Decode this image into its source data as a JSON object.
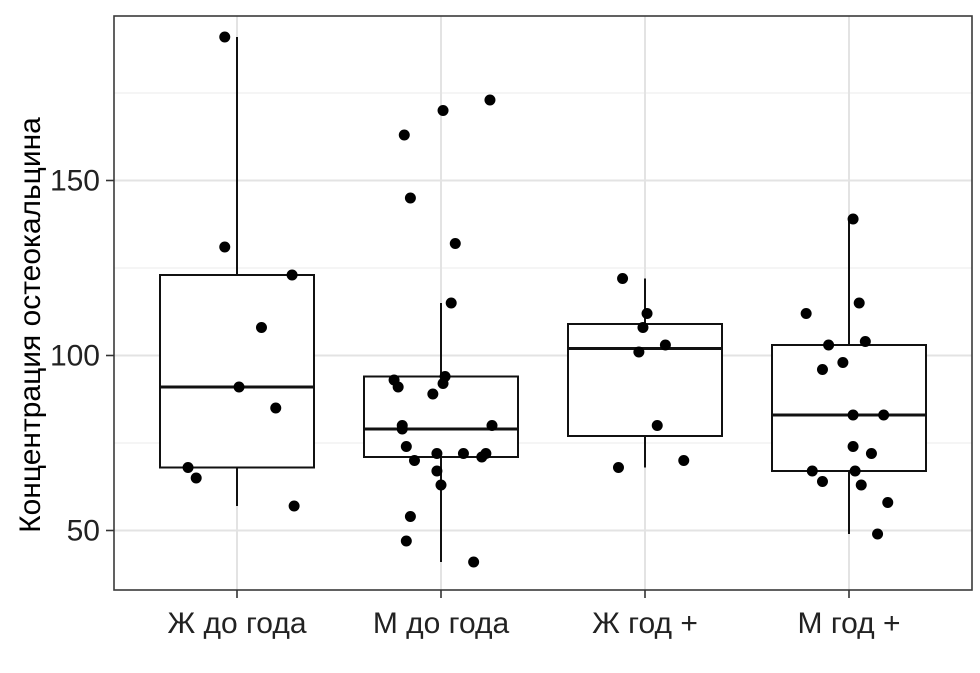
{
  "chart_data": {
    "type": "boxplot",
    "title": "",
    "xlabel": "",
    "ylabel": "Концентрация остеокальцина",
    "ylim": [
      33,
      197
    ],
    "yticks": [
      50,
      100,
      150
    ],
    "grid": true,
    "categories": [
      "Ж до года",
      "М до года",
      "Ж год +",
      "М год +"
    ],
    "boxes": [
      {
        "name": "Ж до года",
        "whisker_low": 57,
        "q1": 68,
        "median": 91,
        "q3": 123,
        "whisker_high": 191
      },
      {
        "name": "М до года",
        "whisker_low": 41,
        "q1": 71,
        "median": 79,
        "q3": 94,
        "whisker_high": 115
      },
      {
        "name": "Ж год +",
        "whisker_low": 68,
        "q1": 77,
        "median": 102,
        "q3": 109,
        "whisker_high": 122
      },
      {
        "name": "М год +",
        "whisker_low": 49,
        "q1": 67,
        "median": 83,
        "q3": 103,
        "whisker_high": 139
      }
    ],
    "points": [
      {
        "x": 0,
        "jitter": -0.06,
        "y": 191
      },
      {
        "x": 0,
        "jitter": -0.06,
        "y": 131
      },
      {
        "x": 0,
        "jitter": 0.27,
        "y": 123
      },
      {
        "x": 0,
        "jitter": 0.12,
        "y": 108
      },
      {
        "x": 0,
        "jitter": 0.01,
        "y": 91
      },
      {
        "x": 0,
        "jitter": 0.19,
        "y": 85
      },
      {
        "x": 0,
        "jitter": -0.24,
        "y": 68
      },
      {
        "x": 0,
        "jitter": -0.2,
        "y": 65
      },
      {
        "x": 0,
        "jitter": 0.28,
        "y": 57
      },
      {
        "x": 1,
        "jitter": 0.24,
        "y": 173
      },
      {
        "x": 1,
        "jitter": 0.01,
        "y": 170
      },
      {
        "x": 1,
        "jitter": -0.18,
        "y": 163
      },
      {
        "x": 1,
        "jitter": -0.15,
        "y": 145
      },
      {
        "x": 1,
        "jitter": 0.07,
        "y": 132
      },
      {
        "x": 1,
        "jitter": 0.05,
        "y": 115
      },
      {
        "x": 1,
        "jitter": 0.02,
        "y": 94
      },
      {
        "x": 1,
        "jitter": -0.23,
        "y": 93
      },
      {
        "x": 1,
        "jitter": 0.01,
        "y": 92
      },
      {
        "x": 1,
        "jitter": -0.21,
        "y": 91
      },
      {
        "x": 1,
        "jitter": -0.04,
        "y": 89
      },
      {
        "x": 1,
        "jitter": 0.25,
        "y": 80
      },
      {
        "x": 1,
        "jitter": -0.19,
        "y": 80
      },
      {
        "x": 1,
        "jitter": -0.19,
        "y": 79
      },
      {
        "x": 1,
        "jitter": -0.17,
        "y": 74
      },
      {
        "x": 1,
        "jitter": -0.02,
        "y": 72
      },
      {
        "x": 1,
        "jitter": 0.11,
        "y": 72
      },
      {
        "x": 1,
        "jitter": 0.22,
        "y": 72
      },
      {
        "x": 1,
        "jitter": 0.2,
        "y": 71
      },
      {
        "x": 1,
        "jitter": -0.13,
        "y": 70
      },
      {
        "x": 1,
        "jitter": -0.02,
        "y": 67
      },
      {
        "x": 1,
        "jitter": 0.0,
        "y": 63
      },
      {
        "x": 1,
        "jitter": -0.15,
        "y": 54
      },
      {
        "x": 1,
        "jitter": -0.17,
        "y": 47
      },
      {
        "x": 1,
        "jitter": 0.16,
        "y": 41
      },
      {
        "x": 2,
        "jitter": -0.11,
        "y": 122
      },
      {
        "x": 2,
        "jitter": 0.01,
        "y": 112
      },
      {
        "x": 2,
        "jitter": -0.01,
        "y": 108
      },
      {
        "x": 2,
        "jitter": 0.1,
        "y": 103
      },
      {
        "x": 2,
        "jitter": -0.03,
        "y": 101
      },
      {
        "x": 2,
        "jitter": 0.06,
        "y": 80
      },
      {
        "x": 2,
        "jitter": 0.19,
        "y": 70
      },
      {
        "x": 2,
        "jitter": -0.13,
        "y": 68
      },
      {
        "x": 3,
        "jitter": 0.02,
        "y": 139
      },
      {
        "x": 3,
        "jitter": 0.05,
        "y": 115
      },
      {
        "x": 3,
        "jitter": -0.21,
        "y": 112
      },
      {
        "x": 3,
        "jitter": 0.08,
        "y": 104
      },
      {
        "x": 3,
        "jitter": -0.1,
        "y": 103
      },
      {
        "x": 3,
        "jitter": -0.03,
        "y": 98
      },
      {
        "x": 3,
        "jitter": -0.13,
        "y": 96
      },
      {
        "x": 3,
        "jitter": 0.17,
        "y": 83
      },
      {
        "x": 3,
        "jitter": 0.02,
        "y": 83
      },
      {
        "x": 3,
        "jitter": 0.02,
        "y": 74
      },
      {
        "x": 3,
        "jitter": 0.11,
        "y": 72
      },
      {
        "x": 3,
        "jitter": 0.03,
        "y": 67
      },
      {
        "x": 3,
        "jitter": -0.18,
        "y": 67
      },
      {
        "x": 3,
        "jitter": -0.13,
        "y": 64
      },
      {
        "x": 3,
        "jitter": 0.06,
        "y": 63
      },
      {
        "x": 3,
        "jitter": 0.19,
        "y": 58
      },
      {
        "x": 3,
        "jitter": 0.14,
        "y": 49
      }
    ]
  }
}
